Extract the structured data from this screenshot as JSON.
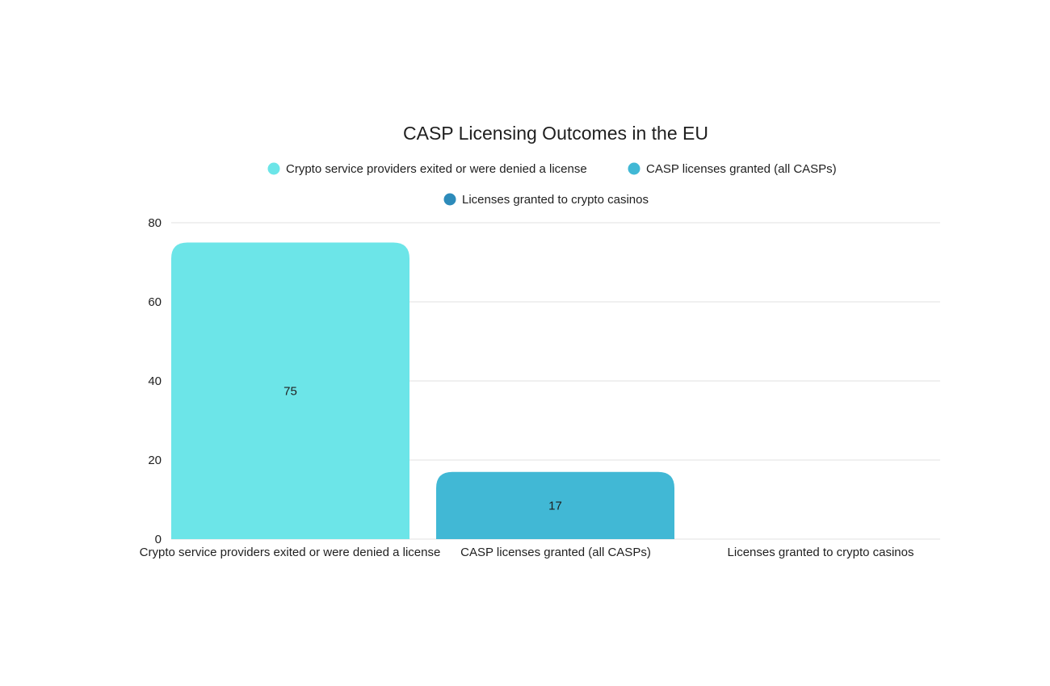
{
  "chart_data": {
    "type": "bar",
    "title": "CASP Licensing Outcomes in the EU",
    "categories": [
      "Crypto service providers exited or were denied a license",
      "CASP licenses granted (all CASPs)",
      "Licenses granted to crypto casinos"
    ],
    "values": [
      75,
      17,
      0
    ],
    "value_labels": [
      "75",
      "17",
      ""
    ],
    "colors": [
      "#6ce5e8",
      "#41b8d5",
      "#2d8bba"
    ],
    "legend": [
      "Crypto service providers exited or were denied a license",
      "CASP licenses granted (all CASPs)",
      "Licenses granted to crypto casinos"
    ],
    "ylim": [
      0,
      80
    ],
    "yticks": [
      0,
      20,
      40,
      60,
      80
    ],
    "ytick_labels": [
      "0",
      "20",
      "40",
      "60",
      "80"
    ],
    "grid": true,
    "legend_position": "top-center",
    "xlabel": "",
    "ylabel": ""
  }
}
